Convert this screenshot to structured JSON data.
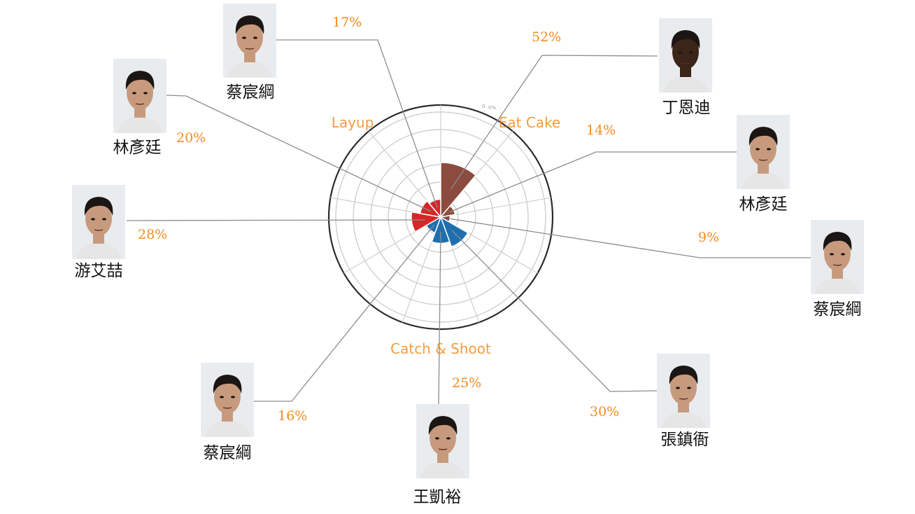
{
  "chart_data": {
    "type": "polar-bar",
    "categories": [
      "Eat Cake",
      "Catch & Shoot",
      "Layup"
    ],
    "category_colors": {
      "Eat Cake": "#8b4c3f",
      "Catch & Shoot": "#1f6fb0",
      "Layup": "#d62728"
    },
    "rmax": 100,
    "rings": 6,
    "outer_ring_labels": [
      "0",
      "0%"
    ],
    "series": [
      {
        "player": "丁恩迪",
        "category": "Eat Cake",
        "value": 52
      },
      {
        "player": "林彥廷",
        "category": "Eat Cake",
        "value": 14
      },
      {
        "player": "蔡宸綱",
        "category": "Eat Cake",
        "value": 9
      },
      {
        "player": "張鎮衙",
        "category": "Catch & Shoot",
        "value": 30
      },
      {
        "player": "王凱裕",
        "category": "Catch & Shoot",
        "value": 25
      },
      {
        "player": "蔡宸綱",
        "category": "Catch & Shoot",
        "value": 16
      },
      {
        "player": "游艾喆",
        "category": "Layup",
        "value": 28
      },
      {
        "player": "林彥廷",
        "category": "Layup",
        "value": 20
      },
      {
        "player": "蔡宸綱",
        "category": "Layup",
        "value": 17
      }
    ]
  },
  "colors": {
    "accent_orange": "#f28b1f",
    "grid": "#cfcfcf",
    "leader": "#8c8c8c",
    "skin": "#c79a7e",
    "skin_dark": "#3b2418",
    "hair": "#1b1614",
    "shirt": "#e6e6e6"
  }
}
